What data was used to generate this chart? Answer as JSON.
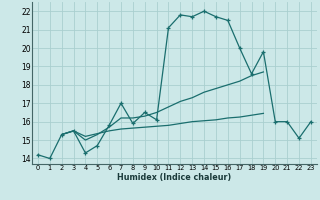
{
  "xlabel": "Humidex (Indice chaleur)",
  "bg_color": "#cce8e8",
  "grid_color": "#aacfcf",
  "line_color": "#1a6e6e",
  "line1_x": [
    0,
    1,
    2,
    3,
    4,
    5,
    6,
    7,
    8,
    9,
    10,
    11,
    12,
    13,
    14,
    15,
    16,
    17,
    18,
    19,
    20,
    21,
    22,
    23
  ],
  "line1_y": [
    14.2,
    14.0,
    15.3,
    15.5,
    14.3,
    14.7,
    15.8,
    17.0,
    15.9,
    16.5,
    16.1,
    21.1,
    21.8,
    21.7,
    22.0,
    21.7,
    21.5,
    20.0,
    18.6,
    19.8,
    16.0,
    16.0,
    15.1,
    16.0
  ],
  "line2_x": [
    2,
    3,
    4,
    5,
    6,
    7,
    8,
    9,
    10,
    11,
    12,
    13,
    14,
    15,
    16,
    17,
    18,
    19
  ],
  "line2_y": [
    15.3,
    15.5,
    15.0,
    15.3,
    15.7,
    16.2,
    16.2,
    16.3,
    16.5,
    16.8,
    17.1,
    17.3,
    17.6,
    17.8,
    18.0,
    18.2,
    18.5,
    18.7
  ],
  "line3_x": [
    2,
    3,
    4,
    5,
    6,
    7,
    8,
    9,
    10,
    11,
    12,
    13,
    14,
    15,
    16,
    17,
    18,
    19
  ],
  "line3_y": [
    15.3,
    15.5,
    15.2,
    15.35,
    15.5,
    15.6,
    15.65,
    15.7,
    15.75,
    15.8,
    15.9,
    16.0,
    16.05,
    16.1,
    16.2,
    16.25,
    16.35,
    16.45
  ],
  "xlim": [
    -0.5,
    23.5
  ],
  "ylim": [
    13.7,
    22.5
  ],
  "yticks": [
    14,
    15,
    16,
    17,
    18,
    19,
    20,
    21,
    22
  ],
  "xticks": [
    0,
    1,
    2,
    3,
    4,
    5,
    6,
    7,
    8,
    9,
    10,
    11,
    12,
    13,
    14,
    15,
    16,
    17,
    18,
    19,
    20,
    21,
    22,
    23
  ]
}
